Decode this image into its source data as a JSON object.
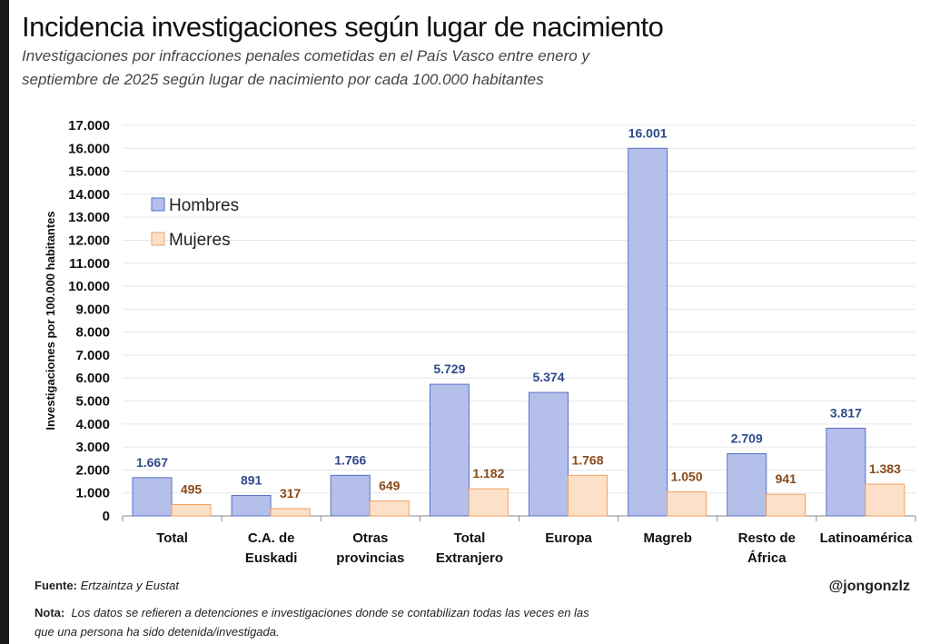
{
  "title": "Incidencia investigaciones según lugar de nacimiento",
  "subtitle_line1": "Investigaciones por infracciones penales cometidas en el País Vasco entre enero y",
  "subtitle_line2": "septiembre de 2025 según lugar de nacimiento por cada 100.000 habitantes",
  "footer": {
    "source_label": "Fuente:",
    "source_text": "Ertzaintza y Eustat",
    "note_label": "Nota:",
    "note_text": "Los datos se refieren a detenciones e investigaciones donde se contabilizan todas las veces en las que una persona ha sido detenida/investigada.",
    "handle": "@jongonzlz"
  },
  "chart_data": {
    "type": "bar",
    "title": "Incidencia investigaciones según lugar de nacimiento",
    "ylabel": "Investigaciones por 100.000 habitantes",
    "xlabel": "",
    "ylim": [
      0,
      17000
    ],
    "yticks": [
      "0",
      "1.000",
      "2.000",
      "3.000",
      "4.000",
      "5.000",
      "6.000",
      "7.000",
      "8.000",
      "9.000",
      "10.000",
      "11.000",
      "12.000",
      "13.000",
      "14.000",
      "15.000",
      "16.000",
      "17.000"
    ],
    "categories": [
      [
        "Total"
      ],
      [
        "C.A. de",
        "Euskadi"
      ],
      [
        "Otras",
        "provincias"
      ],
      [
        "Total",
        "Extranjero"
      ],
      [
        "Europa"
      ],
      [
        "Magreb"
      ],
      [
        "Resto de",
        "África"
      ],
      [
        "Latinoamérica"
      ]
    ],
    "series": [
      {
        "name": "Hombres",
        "color": "#b4c0ea",
        "stroke": "#5a6fc8",
        "labelColor": "#2f4a8a",
        "values": [
          1667,
          891,
          1766,
          5729,
          5374,
          16001,
          2709,
          3817
        ],
        "labels": [
          "1.667",
          "891",
          "1.766",
          "5.729",
          "5.374",
          "16.001",
          "2.709",
          "3.817"
        ]
      },
      {
        "name": "Mujeres",
        "color": "#fde0c8",
        "stroke": "#f0a060",
        "labelColor": "#8a4a1a",
        "values": [
          495,
          317,
          649,
          1182,
          1768,
          1050,
          941,
          1383
        ],
        "labels": [
          "495",
          "317",
          "649",
          "1.182",
          "1.768",
          "1.050",
          "941",
          "1.383"
        ]
      }
    ],
    "grid": true,
    "legend": "top-left"
  }
}
